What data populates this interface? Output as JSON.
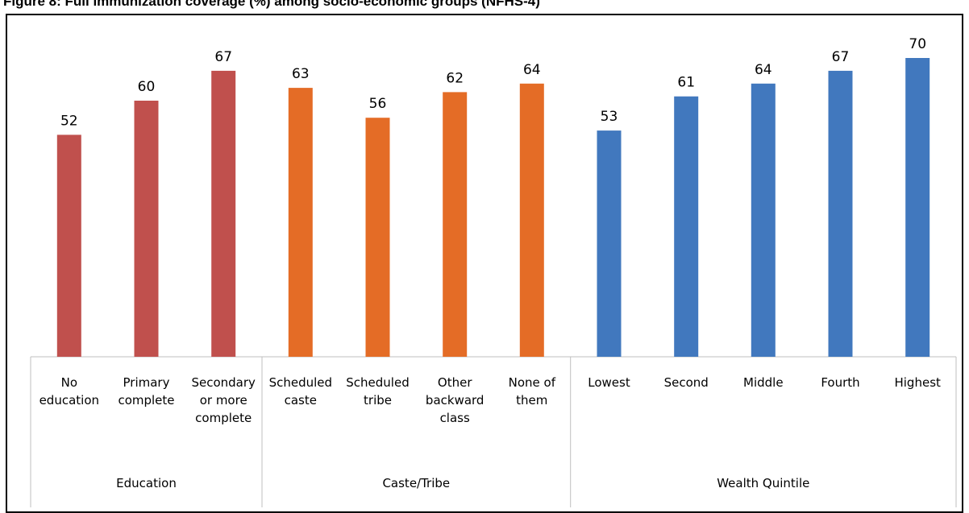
{
  "title": "Figure 8: Full immunization coverage (%) among socio-economic groups (NFHS-4)",
  "chart_data": {
    "type": "bar",
    "ylim": [
      0,
      70
    ],
    "grid": false,
    "groups": [
      {
        "name": "Education",
        "color": "#C0504D",
        "categories": [
          [
            "No",
            "education"
          ],
          [
            "Primary",
            "complete"
          ],
          [
            "Secondary",
            "or more",
            "complete"
          ]
        ],
        "values": [
          52,
          60,
          67
        ]
      },
      {
        "name": "Caste/Tribe",
        "color": "#E46C26",
        "categories": [
          [
            "Scheduled",
            "caste"
          ],
          [
            "Scheduled",
            "tribe"
          ],
          [
            "Other",
            "backward",
            "class"
          ],
          [
            "None of",
            "them"
          ]
        ],
        "values": [
          63,
          56,
          62,
          64
        ]
      },
      {
        "name": "Wealth Quintile",
        "color": "#4178BE",
        "categories": [
          [
            "Lowest"
          ],
          [
            "Second"
          ],
          [
            "Middle"
          ],
          [
            "Fourth"
          ],
          [
            "Highest"
          ]
        ],
        "values": [
          53,
          61,
          64,
          67,
          70
        ]
      }
    ]
  }
}
